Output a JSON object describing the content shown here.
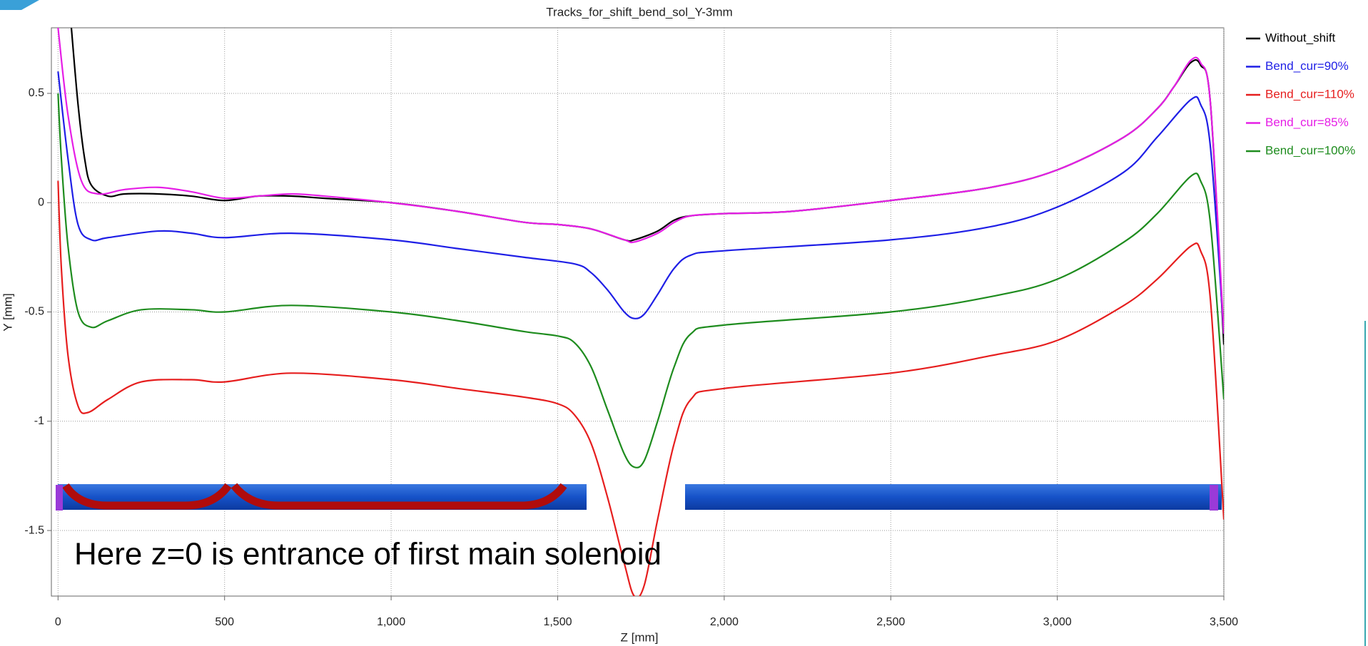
{
  "chart_data": {
    "type": "line",
    "title": "Tracks_for_shift_bend_sol_Y-3mm",
    "x_label": "Z [mm]",
    "y_label": "Y [mm]",
    "annotation": "Here z=0 is entrance of first main solenoid",
    "xlim": [
      -20,
      3500
    ],
    "ylim": [
      -1.8,
      0.8
    ],
    "xticks": [
      0,
      500,
      {
        "value": 1000,
        "label": "1,000"
      },
      {
        "value": 1500,
        "label": "1,500"
      },
      {
        "value": 2000,
        "label": "2,000"
      },
      {
        "value": 2500,
        "label": "2,500"
      },
      {
        "value": 3000,
        "label": "3,000"
      },
      {
        "value": 3500,
        "label": "3,500"
      }
    ],
    "yticks": [
      -1.5,
      -1,
      -0.5,
      0,
      0.5
    ],
    "grid": true,
    "legend": "right",
    "series": [
      {
        "name": "Without_shift",
        "color": "#000000",
        "x": [
          40,
          60,
          80,
          100,
          150,
          200,
          300,
          400,
          500,
          600,
          700,
          800,
          1000,
          1200,
          1400,
          1500,
          1600,
          1700,
          1730,
          1800,
          1850,
          1900,
          2000,
          2200,
          2500,
          2800,
          3000,
          3200,
          3300,
          3350,
          3400,
          3430,
          3460,
          3500
        ],
        "values": [
          0.8,
          0.45,
          0.2,
          0.08,
          0.03,
          0.04,
          0.04,
          0.03,
          0.01,
          0.03,
          0.03,
          0.02,
          0.0,
          -0.04,
          -0.09,
          -0.1,
          -0.12,
          -0.17,
          -0.17,
          -0.13,
          -0.08,
          -0.06,
          -0.05,
          -0.04,
          0.01,
          0.07,
          0.15,
          0.3,
          0.43,
          0.53,
          0.64,
          0.63,
          0.45,
          -0.65
        ]
      },
      {
        "name": "Bend_cur=90%",
        "color": "#1f1fe6",
        "x": [
          0,
          30,
          60,
          100,
          150,
          300,
          400,
          500,
          700,
          1000,
          1200,
          1400,
          1550,
          1600,
          1650,
          1700,
          1730,
          1760,
          1800,
          1850,
          1900,
          2000,
          2500,
          2800,
          3000,
          3200,
          3300,
          3400,
          3430,
          3460,
          3500
        ],
        "values": [
          0.6,
          0.2,
          -0.1,
          -0.17,
          -0.16,
          -0.13,
          -0.14,
          -0.16,
          -0.14,
          -0.17,
          -0.21,
          -0.25,
          -0.28,
          -0.32,
          -0.4,
          -0.5,
          -0.53,
          -0.51,
          -0.42,
          -0.3,
          -0.24,
          -0.22,
          -0.17,
          -0.11,
          -0.02,
          0.14,
          0.3,
          0.47,
          0.45,
          0.25,
          -0.6
        ]
      },
      {
        "name": "Bend_cur=110%",
        "color": "#e61e1e",
        "x": [
          0,
          10,
          30,
          60,
          90,
          150,
          250,
          400,
          500,
          700,
          1000,
          1200,
          1400,
          1500,
          1550,
          1600,
          1650,
          1700,
          1730,
          1760,
          1800,
          1850,
          1900,
          2000,
          2500,
          2800,
          3000,
          3200,
          3300,
          3400,
          3430,
          3460,
          3500
        ],
        "values": [
          0.1,
          -0.3,
          -0.7,
          -0.93,
          -0.96,
          -0.9,
          -0.82,
          -0.81,
          -0.82,
          -0.78,
          -0.81,
          -0.85,
          -0.89,
          -0.92,
          -0.97,
          -1.1,
          -1.35,
          -1.65,
          -1.8,
          -1.75,
          -1.45,
          -1.1,
          -0.9,
          -0.85,
          -0.78,
          -0.7,
          -0.63,
          -0.47,
          -0.35,
          -0.2,
          -0.22,
          -0.45,
          -1.45
        ]
      },
      {
        "name": "Bend_cur=85%",
        "color": "#e61ee6",
        "x": [
          0,
          30,
          70,
          120,
          200,
          300,
          400,
          500,
          600,
          700,
          800,
          1000,
          1200,
          1400,
          1500,
          1600,
          1700,
          1730,
          1800,
          1850,
          1900,
          2000,
          2200,
          2500,
          2800,
          3000,
          3200,
          3300,
          3350,
          3400,
          3430,
          3460,
          3500
        ],
        "values": [
          0.8,
          0.4,
          0.1,
          0.04,
          0.06,
          0.07,
          0.05,
          0.02,
          0.03,
          0.04,
          0.03,
          0.0,
          -0.04,
          -0.09,
          -0.1,
          -0.12,
          -0.17,
          -0.18,
          -0.14,
          -0.09,
          -0.06,
          -0.05,
          -0.04,
          0.01,
          0.07,
          0.15,
          0.3,
          0.43,
          0.53,
          0.65,
          0.64,
          0.45,
          -0.6
        ]
      },
      {
        "name": "Bend_cur=100%",
        "color": "#1e8c1e",
        "x": [
          0,
          10,
          30,
          60,
          100,
          150,
          250,
          400,
          500,
          700,
          1000,
          1200,
          1400,
          1500,
          1550,
          1600,
          1650,
          1700,
          1730,
          1760,
          1800,
          1850,
          1900,
          2000,
          2500,
          2800,
          3000,
          3200,
          3300,
          3400,
          3430,
          3460,
          3500
        ],
        "values": [
          0.5,
          0.2,
          -0.2,
          -0.5,
          -0.57,
          -0.54,
          -0.49,
          -0.49,
          -0.5,
          -0.47,
          -0.5,
          -0.54,
          -0.59,
          -0.61,
          -0.64,
          -0.75,
          -0.95,
          -1.15,
          -1.21,
          -1.18,
          -1.0,
          -0.75,
          -0.6,
          -0.56,
          -0.5,
          -0.43,
          -0.35,
          -0.18,
          -0.05,
          0.12,
          0.1,
          -0.1,
          -0.9
        ]
      }
    ]
  }
}
